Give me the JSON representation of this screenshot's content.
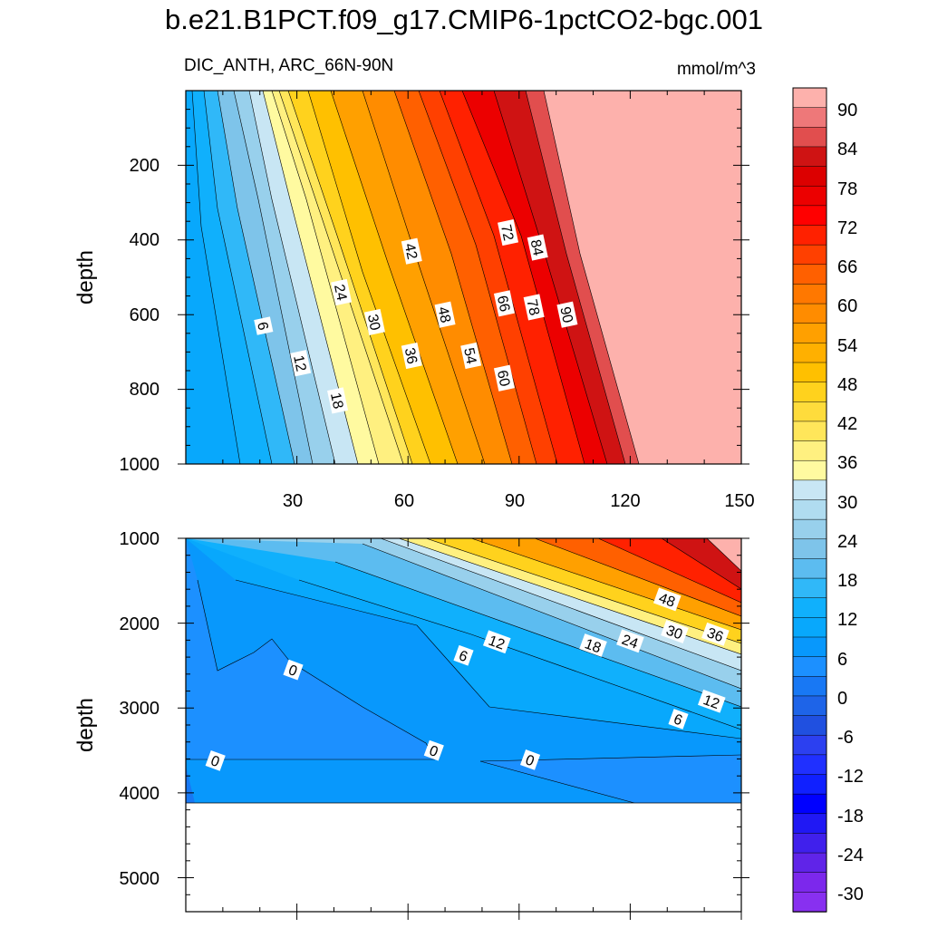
{
  "title": "b.e21.B1PCT.f09_g17.CMIP6-1pctCO2-bgc.001",
  "subtitle_left": "DIC_ANTH, ARC_66N-90N",
  "subtitle_right": "mmol/m^3",
  "chart_data": [
    {
      "type": "contour",
      "panel": "top",
      "ylabel": "depth",
      "xlabel": "",
      "xlim": [
        0,
        150
      ],
      "ylim": [
        1000,
        0
      ],
      "x_ticks": [
        "30",
        "60",
        "90",
        "120",
        "150"
      ],
      "y_ticks": [
        "200",
        "400",
        "600",
        "800",
        "1000"
      ],
      "contour_interval": 3,
      "contour_labels": [
        {
          "value": "6",
          "x": 21,
          "depth": 630
        },
        {
          "value": "12",
          "x": 31,
          "depth": 730
        },
        {
          "value": "18",
          "x": 41,
          "depth": 830
        },
        {
          "value": "24",
          "x": 42,
          "depth": 540
        },
        {
          "value": "30",
          "x": 51,
          "depth": 620
        },
        {
          "value": "36",
          "x": 61,
          "depth": 710
        },
        {
          "value": "42",
          "x": 61,
          "depth": 430
        },
        {
          "value": "48",
          "x": 70,
          "depth": 600
        },
        {
          "value": "54",
          "x": 77,
          "depth": 710
        },
        {
          "value": "60",
          "x": 86,
          "depth": 770
        },
        {
          "value": "66",
          "x": 86,
          "depth": 570
        },
        {
          "value": "72",
          "x": 87,
          "depth": 380
        },
        {
          "value": "78",
          "x": 94,
          "depth": 580
        },
        {
          "value": "84",
          "x": 95,
          "depth": 420
        },
        {
          "value": "90",
          "x": 103,
          "depth": 600
        }
      ]
    },
    {
      "type": "contour",
      "panel": "bottom",
      "ylabel": "depth",
      "xlabel": "",
      "xlim": [
        0,
        150
      ],
      "ylim": [
        5400,
        1000
      ],
      "y_ticks": [
        "1000",
        "2000",
        "3000",
        "4000",
        "5000"
      ],
      "contour_interval": 3,
      "contour_labels": [
        {
          "value": "0",
          "x": 29,
          "depth": 2550
        },
        {
          "value": "0",
          "x": 8,
          "depth": 3620
        },
        {
          "value": "0",
          "x": 67,
          "depth": 3500
        },
        {
          "value": "0",
          "x": 93,
          "depth": 3610
        },
        {
          "value": "6",
          "x": 75,
          "depth": 2380
        },
        {
          "value": "6",
          "x": 133,
          "depth": 3130
        },
        {
          "value": "12",
          "x": 84,
          "depth": 2220
        },
        {
          "value": "12",
          "x": 142,
          "depth": 2920
        },
        {
          "value": "18",
          "x": 110,
          "depth": 2260
        },
        {
          "value": "24",
          "x": 120,
          "depth": 2210
        },
        {
          "value": "30",
          "x": 132,
          "depth": 2100
        },
        {
          "value": "36",
          "x": 143,
          "depth": 2130
        },
        {
          "value": "48",
          "x": 130,
          "depth": 1720
        }
      ]
    }
  ],
  "colorbar": {
    "labels": [
      "90",
      "84",
      "78",
      "72",
      "66",
      "60",
      "54",
      "48",
      "42",
      "36",
      "30",
      "24",
      "18",
      "12",
      "6",
      "0",
      "-6",
      "-12",
      "-18",
      "-24",
      "-30"
    ],
    "colors": [
      "#fdb1ac",
      "#ee7879",
      "#e14e4e",
      "#cf1313",
      "#dc0000",
      "#ec0000",
      "#ff0000",
      "#ff2100",
      "#ff4000",
      "#ff6000",
      "#ff7800",
      "#ff8c00",
      "#ffa000",
      "#ffb000",
      "#ffc000",
      "#ffd21d",
      "#fedc3c",
      "#ffe65a",
      "#fff080",
      "#fffaa0",
      "#c8e6f4",
      "#b0dcf0",
      "#98d0ec",
      "#7ec4ea",
      "#5cbcf0",
      "#30b8f8",
      "#10b0fc",
      "#08a8fc",
      "#0898fc",
      "#1c90ff",
      "#1878f4",
      "#1e64e8",
      "#2050e0",
      "#2c40f0",
      "#2030ff",
      "#1020ff",
      "#0000ff",
      "#2018f4",
      "#4020ec",
      "#6024e8",
      "#7c28ec",
      "#8830f0"
    ]
  }
}
